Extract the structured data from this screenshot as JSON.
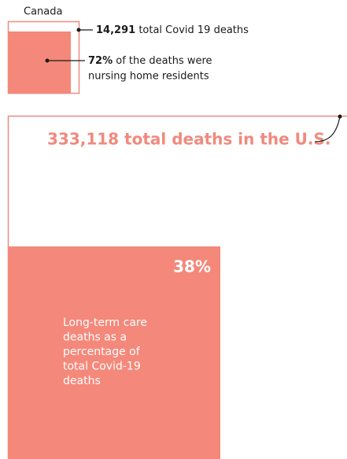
{
  "canada": {
    "label": "Canada",
    "total_number": "14,291",
    "total_text": "total Covid 19 deaths",
    "share_number": "72%",
    "share_text": [
      "of the deaths were",
      "nursing home residents"
    ]
  },
  "us": {
    "title": "333,118 total deaths in the U.S.",
    "share": "38%",
    "description": [
      "Long-term care",
      "deaths as a",
      "percentage of",
      "total Covid-19",
      "deaths"
    ]
  }
}
